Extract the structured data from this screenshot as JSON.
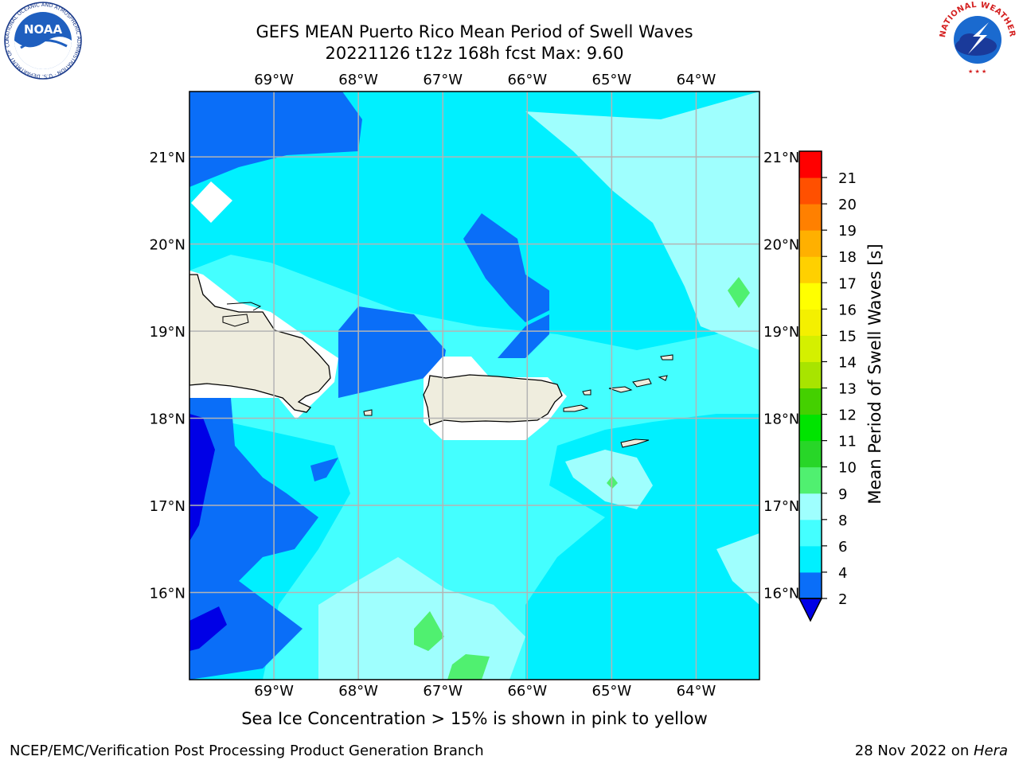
{
  "header": {
    "title_line1": "GEFS MEAN Puerto Rico Mean Period of Swell Waves",
    "title_line2": "20221126 t12z 168h fcst   Max: 9.60"
  },
  "map": {
    "longitude_labels": [
      "69°W",
      "68°W",
      "67°W",
      "66°W",
      "65°W",
      "64°W"
    ],
    "latitude_labels": [
      "21°N",
      "20°N",
      "19°N",
      "18°N",
      "17°N",
      "16°N"
    ],
    "lon_range": [
      -70.0,
      -63.25
    ],
    "lat_range": [
      15.0,
      21.75
    ],
    "grid": true,
    "land_color": "#efedde",
    "coast_color": "#000000",
    "no_data_color": "#ffffff"
  },
  "colorbar": {
    "label": "Mean Period of Swell Waves [s]",
    "ticks": [
      "2",
      "4",
      "6",
      "8",
      "9",
      "10",
      "11",
      "12",
      "13",
      "14",
      "15",
      "16",
      "17",
      "18",
      "19",
      "20",
      "21"
    ],
    "colors": [
      "#0a6ef8",
      "#00f0ff",
      "#44ffff",
      "#9ffffe",
      "#50f070",
      "#28d628",
      "#00e400",
      "#44d000",
      "#a8e400",
      "#d4f000",
      "#f4f000",
      "#ffff00",
      "#ffd000",
      "#ffb000",
      "#ff8000",
      "#ff5000",
      "#ff0000"
    ],
    "extend_below_color": "#0000e6"
  },
  "caption": "Sea Ice Concentration > 15% is shown in pink to yellow",
  "footer": {
    "left": "NCEP/EMC/Verification Post Processing Product Generation Branch",
    "date": "28 Nov 2022 on ",
    "host": "Hera"
  },
  "logos": {
    "noaa_text": "NOAA",
    "noaa_ring": "NATIONAL OCEANIC AND ATMOSPHERIC ADMINISTRATION · U.S. DEPARTMENT OF COMMERCE",
    "nws_ring": "NATIONAL WEATHER SERVICE"
  }
}
